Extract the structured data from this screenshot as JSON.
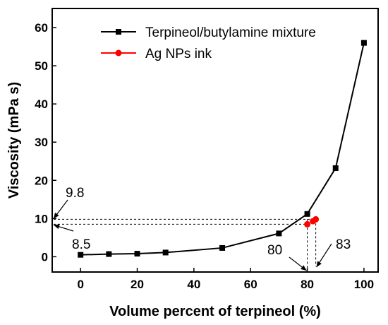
{
  "chart_data": {
    "type": "line",
    "title": "",
    "xlabel": "Volume percent of terpineol (%)",
    "ylabel": "Viscosity (mPa s)",
    "xlim": [
      -10,
      105
    ],
    "ylim": [
      -4,
      65
    ],
    "xticks": [
      0,
      20,
      40,
      60,
      80,
      100
    ],
    "yticks": [
      0,
      10,
      20,
      30,
      40,
      50,
      60
    ],
    "grid": false,
    "legend_position": "top-center",
    "series": [
      {
        "name": "Terpineol/butylamine mixture",
        "color": "#000000",
        "marker": "square",
        "x": [
          0,
          10,
          20,
          30,
          50,
          70,
          80,
          90,
          100
        ],
        "y": [
          0.5,
          0.7,
          0.8,
          1.1,
          2.3,
          6.1,
          11.2,
          23.2,
          56.0
        ]
      },
      {
        "name": "Ag NPs ink",
        "color": "#ff0000",
        "marker": "circle",
        "x": [
          80,
          82,
          83
        ],
        "y": [
          8.5,
          9.3,
          9.8
        ]
      }
    ],
    "annotations": [
      {
        "text": "9.8",
        "value": 9.8
      },
      {
        "text": "8.5",
        "value": 8.5
      },
      {
        "text": "80",
        "value": 80
      },
      {
        "text": "83",
        "value": 83
      }
    ]
  }
}
